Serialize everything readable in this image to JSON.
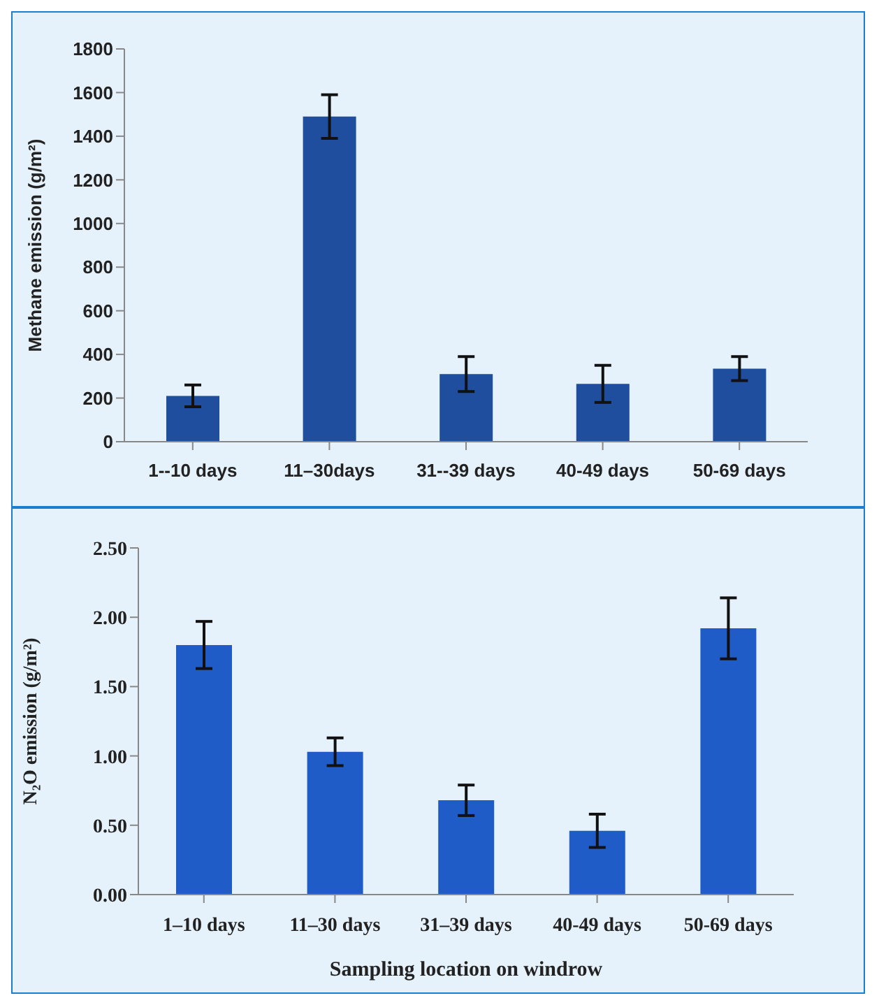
{
  "chart_data": [
    {
      "type": "bar",
      "ylabel": "Methane emission (g/m²)",
      "categories": [
        "1--10 days",
        "11–30days",
        "31--39 days",
        "40-49 days",
        "50-69 days"
      ],
      "values": [
        210,
        1490,
        310,
        265,
        335
      ],
      "errors": [
        50,
        100,
        80,
        85,
        55
      ],
      "color": "#1f4e9e",
      "ylim": [
        0,
        1800
      ],
      "yticks": [
        0,
        200,
        400,
        600,
        800,
        1000,
        1200,
        1400,
        1600,
        1800
      ],
      "grid": false,
      "legend": false
    },
    {
      "type": "bar",
      "ylabel": "N₂O emission (g/m²)",
      "xlabel": "Sampling location on windrow",
      "categories": [
        "1–10 days",
        "11–30 days",
        "31–39 days",
        "40-49 days",
        "50-69 days"
      ],
      "values": [
        1.8,
        1.03,
        0.68,
        0.46,
        1.92
      ],
      "errors": [
        0.17,
        0.1,
        0.11,
        0.12,
        0.22
      ],
      "color": "#1f5cc8",
      "ylim": [
        0,
        2.5
      ],
      "yticks": [
        {
          "value": 0,
          "label": "0.00"
        },
        {
          "value": 0.5,
          "label": "0.50"
        },
        {
          "value": 1,
          "label": "1.00"
        },
        {
          "value": 1.5,
          "label": "1.50"
        },
        {
          "value": 2,
          "label": "2.00"
        },
        {
          "value": 2.5,
          "label": "2.50"
        }
      ],
      "grid": false,
      "legend": false
    }
  ]
}
